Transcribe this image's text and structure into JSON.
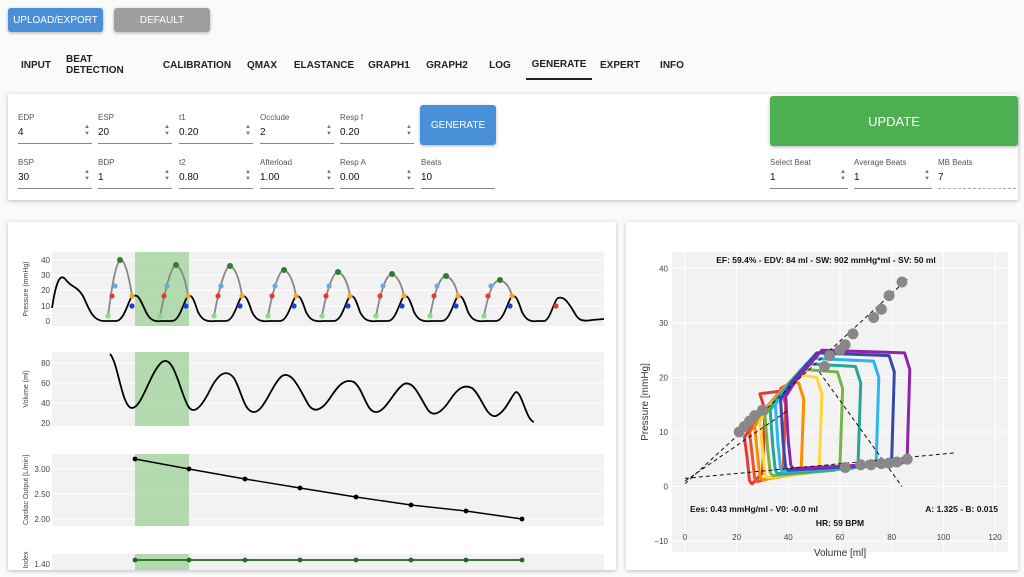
{
  "toolbar": {
    "upload_label": "UPLOAD/EXPORT",
    "default_label": "DEFAULT"
  },
  "tabs": [
    {
      "label": "INPUT"
    },
    {
      "label": "BEAT DETECTION"
    },
    {
      "label": "CALIBRATION"
    },
    {
      "label": "QMAX"
    },
    {
      "label": "ELASTANCE"
    },
    {
      "label": "GRAPH1"
    },
    {
      "label": "GRAPH2"
    },
    {
      "label": "LOG"
    },
    {
      "label": "GENERATE",
      "active": true
    },
    {
      "label": "EXPERT"
    },
    {
      "label": "INFO"
    }
  ],
  "params": {
    "edp": {
      "label": "EDP",
      "value": "4"
    },
    "esp": {
      "label": "ESP",
      "value": "20"
    },
    "t1": {
      "label": "t1",
      "value": "0.20"
    },
    "occlude": {
      "label": "Occlude",
      "value": "2"
    },
    "resp_f": {
      "label": "Resp f",
      "value": "0.20"
    },
    "bsp": {
      "label": "BSP",
      "value": "30"
    },
    "bdp": {
      "label": "BDP",
      "value": "1"
    },
    "t2": {
      "label": "t2",
      "value": "0.80"
    },
    "afterload": {
      "label": "Afterload",
      "value": "1.00"
    },
    "resp_a": {
      "label": "Resp A",
      "value": "0.00"
    },
    "beats": {
      "label": "Beats",
      "value": "10"
    }
  },
  "generate_label": "GENERATE",
  "update_label": "UPDATE",
  "beat_select": {
    "select_beat": {
      "label": "Select Beat",
      "value": "1"
    },
    "average_beats": {
      "label": "Average Beats",
      "value": "1"
    },
    "mb_beats": {
      "label": "MB Beats",
      "value": "7"
    }
  },
  "left_charts": {
    "pressure": {
      "ylabel": "Pressure (mmHg)",
      "ticks": [
        "40",
        "30",
        "20",
        "10",
        "0"
      ]
    },
    "volume": {
      "ylabel": "Volume (ml)",
      "ticks": [
        "80",
        "60",
        "40",
        "20"
      ]
    },
    "cardiac_output": {
      "ylabel": "Cardiac Output [L/min]",
      "ticks": [
        "3.00",
        "2.50",
        "2.00"
      ]
    },
    "index": {
      "ylabel": "Index",
      "ticks": [
        "1.40"
      ]
    }
  },
  "colors": {
    "highlight": "#a8d5a2",
    "green": "#2e7d32",
    "red": "#e53935",
    "orange": "#f9a825",
    "blue": "#1e3fd1",
    "lightblue": "#6fa8dc",
    "lightgreen": "#8fd68f"
  },
  "chart_data": [
    {
      "type": "line",
      "title": "",
      "ylabel": "Pressure (mmHg)",
      "ylim": [
        0,
        45
      ],
      "series": [
        {
          "values": [
            10,
            28,
            5,
            40,
            5,
            38,
            5,
            37,
            5,
            36,
            5,
            34,
            5,
            33,
            5,
            32,
            5,
            30,
            5,
            20,
            5
          ]
        }
      ]
    },
    {
      "type": "line",
      "ylabel": "Volume (ml)",
      "ylim": [
        20,
        90
      ],
      "series": [
        {
          "values": [
            90,
            40,
            83,
            38,
            75,
            40,
            70,
            40,
            66,
            40,
            62,
            40,
            58,
            38,
            54,
            38,
            50,
            30
          ]
        }
      ]
    },
    {
      "type": "line",
      "ylabel": "Cardiac Output [L/min]",
      "ylim": [
        1.9,
        3.3
      ],
      "series": [
        {
          "values": [
            3.2,
            3.01,
            2.81,
            2.62,
            2.43,
            2.25,
            2.14,
            1.99
          ]
        }
      ]
    },
    {
      "type": "line",
      "ylabel": "Index",
      "series": [
        {
          "values": [
            1.4,
            1.4,
            1.4,
            1.4,
            1.4,
            1.4,
            1.4,
            1.4
          ]
        }
      ]
    },
    {
      "type": "line",
      "title": "EF: 59.4% - EDV: 84 ml - SW: 902 mmHg*ml - SV: 50 ml",
      "xlabel": "Volume [ml]",
      "ylabel": "Pressure [mmHg]",
      "xlim": [
        -5,
        125
      ],
      "ylim": [
        -12,
        43
      ],
      "xticks": [
        "0",
        "20",
        "40",
        "60",
        "80",
        "100",
        "120"
      ],
      "yticks": [
        "40",
        "30",
        "20",
        "10",
        "0",
        "−10"
      ],
      "annotations": [
        "Ees: 0.43 mmHg/ml - V0: -0.0 ml",
        "A: 1.325 - B: 0.015",
        "HR: 59 BPM"
      ],
      "loops": [
        {
          "color": "#e53935",
          "edv": 30,
          "esv": 25,
          "peak": 17
        },
        {
          "color": "#f4511e",
          "edv": 38,
          "esv": 27,
          "peak": 18
        },
        {
          "color": "#fb8c00",
          "edv": 45,
          "esv": 29,
          "peak": 19
        },
        {
          "color": "#fdd835",
          "edv": 52,
          "esv": 31,
          "peak": 20
        },
        {
          "color": "#7cb342",
          "edv": 60,
          "esv": 33,
          "peak": 21
        },
        {
          "color": "#26a69a",
          "edv": 67,
          "esv": 35,
          "peak": 22
        },
        {
          "color": "#29b6f6",
          "edv": 74,
          "esv": 37,
          "peak": 23
        },
        {
          "color": "#3949ab",
          "edv": 80,
          "esv": 39,
          "peak": 24
        },
        {
          "color": "#8e24aa",
          "edv": 86,
          "esv": 41,
          "peak": 24.5
        }
      ],
      "esp_points": [
        [
          84,
          37.5
        ],
        [
          79,
          35
        ],
        [
          76,
          32.5
        ],
        [
          73,
          31
        ],
        [
          65,
          28
        ],
        [
          62,
          26
        ],
        [
          60,
          25
        ],
        [
          56,
          24
        ],
        [
          54,
          22
        ]
      ],
      "edp_points": [
        [
          21,
          10
        ],
        [
          23,
          11
        ],
        [
          25,
          12
        ],
        [
          27,
          13
        ],
        [
          30,
          14
        ],
        [
          62,
          3.5
        ],
        [
          68,
          4
        ],
        [
          72,
          4
        ],
        [
          76,
          4.2
        ],
        [
          79,
          4.3
        ],
        [
          82,
          4.5
        ],
        [
          86,
          5
        ]
      ]
    }
  ]
}
